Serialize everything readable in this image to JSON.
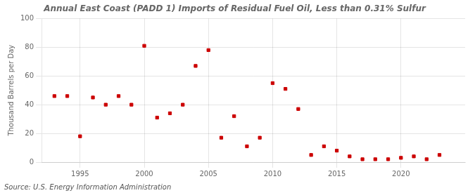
{
  "chart_data": {
    "type": "scatter",
    "title": "Annual East Coast (PADD 1) Imports of Residual Fuel Oil, Less than 0.31% Sulfur",
    "y_label": "Thousand Barrels per Day",
    "annotations": [
      "Source: U.S. Energy Information Administration"
    ],
    "x": [
      1993,
      1994,
      1995,
      1996,
      1997,
      1998,
      1999,
      2000,
      2001,
      2002,
      2003,
      2004,
      2005,
      2006,
      2007,
      2008,
      2009,
      2010,
      2011,
      2012,
      2013,
      2014,
      2015,
      2016,
      2017,
      2018,
      2019,
      2020,
      2021,
      2022,
      2023
    ],
    "values": [
      46,
      46,
      18,
      45,
      40,
      46,
      40,
      81,
      31,
      34,
      40,
      67,
      78,
      17,
      32,
      11,
      17,
      55,
      51,
      37,
      5,
      11,
      8,
      4,
      2,
      2,
      2,
      3,
      4,
      2,
      5
    ],
    "color": "#cc0000",
    "marker": "square",
    "xlim": [
      1992,
      2025
    ],
    "xticks": [
      1995,
      2000,
      2005,
      2010,
      2015,
      2020
    ],
    "ylim": [
      0,
      100
    ],
    "yticks": [
      0,
      20,
      40,
      60,
      80,
      100
    ],
    "grid": true
  }
}
